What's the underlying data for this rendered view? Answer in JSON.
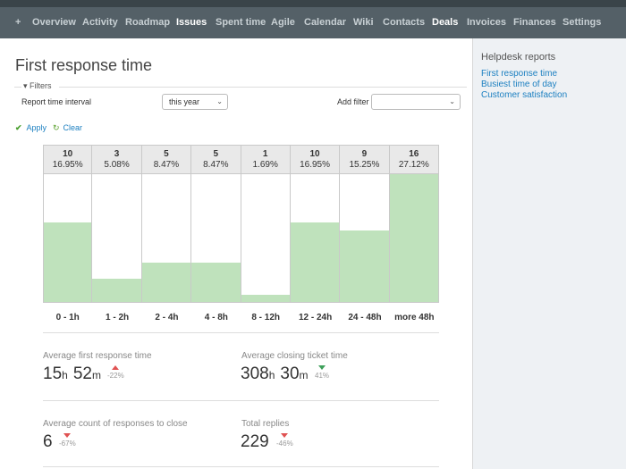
{
  "menu": {
    "items": [
      "+",
      "Overview",
      "Activity",
      "Roadmap",
      "Issues",
      "Spent time",
      "Agile",
      "Calendar",
      "Wiki",
      "Contacts",
      "Deals",
      "Invoices",
      "Finances",
      "Settings"
    ],
    "selected": [
      "Issues",
      "Deals"
    ]
  },
  "page": {
    "title": "First response time"
  },
  "filters": {
    "legend": "Filters",
    "interval_label": "Report time interval",
    "interval_value": "this year",
    "add_filter_label": "Add filter",
    "add_filter_value": "",
    "apply_label": "Apply",
    "clear_label": "Clear"
  },
  "chart_data": {
    "type": "bar",
    "categories": [
      "0 - 1h",
      "1 - 2h",
      "2 - 4h",
      "4 - 8h",
      "8 - 12h",
      "12 - 24h",
      "24 - 48h",
      "more 48h"
    ],
    "values": [
      10,
      3,
      5,
      5,
      1,
      10,
      9,
      16
    ],
    "percentages": [
      "16.95%",
      "5.08%",
      "8.47%",
      "8.47%",
      "1.69%",
      "16.95%",
      "15.25%",
      "27.12%"
    ],
    "counts_text": [
      "10",
      "3",
      "5",
      "5",
      "1",
      "10",
      "9",
      "16"
    ],
    "color": "#bfe2bc"
  },
  "metrics": {
    "avg_first_response": {
      "label": "Average first response time",
      "hours": "15",
      "h_unit": "h",
      "minutes": "52",
      "m_unit": "m",
      "delta": "-22%"
    },
    "avg_closing": {
      "label": "Average closing ticket time",
      "hours": "308",
      "h_unit": "h",
      "minutes": "30",
      "m_unit": "m",
      "delta": "41%"
    },
    "avg_responses": {
      "label": "Average count of responses to close",
      "value": "6",
      "delta": "-67%"
    },
    "total_replies": {
      "label": "Total replies",
      "value": "229",
      "delta": "-46%"
    }
  },
  "sidebar": {
    "title": "Helpdesk reports",
    "links": [
      "First response time",
      "Busiest time of day",
      "Customer satisfaction"
    ]
  },
  "colors": {
    "menu_bg": "#546067",
    "link": "#1d80c1",
    "bar": "#bfe2bc",
    "delta_up": "#e05252",
    "delta_down_good": "#3ea05a"
  }
}
